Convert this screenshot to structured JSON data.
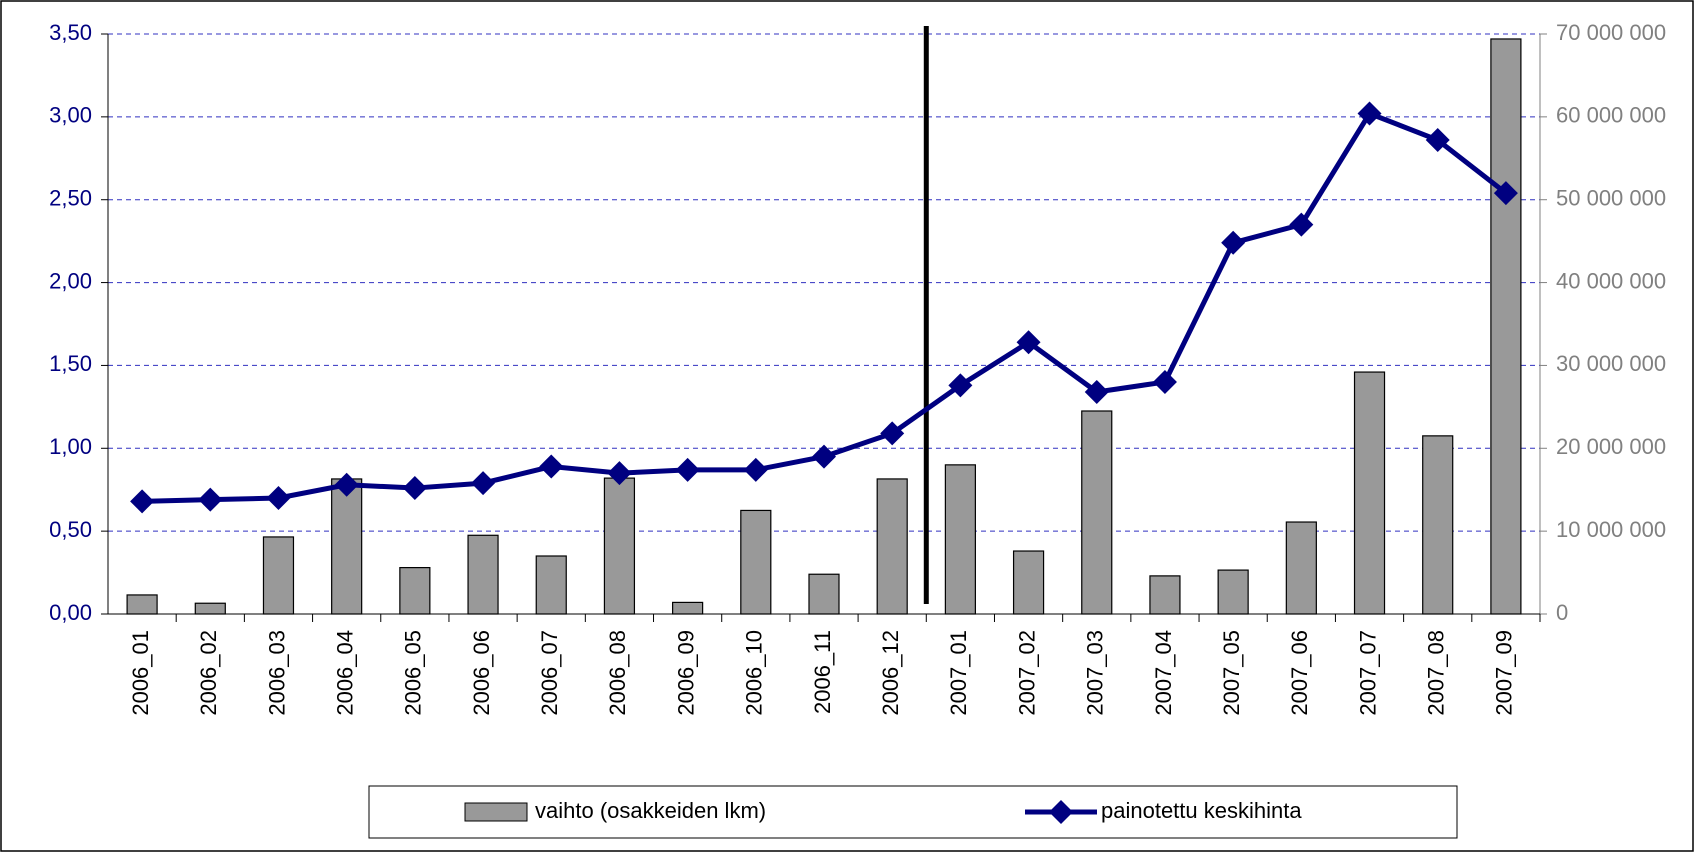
{
  "chart_data": {
    "type": "bar_line",
    "categories": [
      "2006_01",
      "2006_02",
      "2006_03",
      "2006_04",
      "2006_05",
      "2006_06",
      "2006_07",
      "2006_08",
      "2006_09",
      "2006_10",
      "2006_11",
      "2006_12",
      "2007_01",
      "2007_02",
      "2007_03",
      "2007_04",
      "2007_05",
      "2007_06",
      "2007_07",
      "2007_08",
      "2007_09"
    ],
    "series": [
      {
        "name": "vaihto (osakkeiden lkm)",
        "type": "bar",
        "axis": "y2",
        "color": "#999999",
        "values": [
          2300000,
          1300000,
          9300000,
          16300000,
          5600000,
          9500000,
          7000000,
          16400000,
          1400000,
          12500000,
          4800000,
          16300000,
          18000000,
          7600000,
          24500000,
          4600000,
          5300000,
          11100000,
          29200000,
          21500000,
          69400000
        ]
      },
      {
        "name": "painotettu keskihinta",
        "type": "line",
        "axis": "y",
        "color": "#000080",
        "values": [
          0.68,
          0.69,
          0.7,
          0.78,
          0.76,
          0.79,
          0.89,
          0.85,
          0.87,
          0.87,
          0.95,
          1.09,
          1.38,
          1.64,
          1.34,
          1.4,
          2.24,
          2.35,
          3.02,
          2.86,
          2.54
        ]
      }
    ],
    "ylim": [
      0,
      3.5
    ],
    "yticks": [
      {
        "value": 0,
        "label": "0,00"
      },
      {
        "value": 0.5,
        "label": "0,50"
      },
      {
        "value": 1,
        "label": "1,00"
      },
      {
        "value": 1.5,
        "label": "1,50"
      },
      {
        "value": 2,
        "label": "2,00"
      },
      {
        "value": 2.5,
        "label": "2,50"
      },
      {
        "value": 3,
        "label": "3,00"
      },
      {
        "value": 3.5,
        "label": "3,50"
      }
    ],
    "y2lim": [
      0,
      70000000
    ],
    "y2ticks": [
      0,
      {
        "value": 10000000,
        "label": "10 000 000"
      },
      {
        "value": 20000000,
        "label": "20 000 000"
      },
      {
        "value": 30000000,
        "label": "30 000 000"
      },
      {
        "value": 40000000,
        "label": "40 000 000"
      },
      {
        "value": 50000000,
        "label": "50 000 000"
      },
      {
        "value": 60000000,
        "label": "60 000 000"
      },
      {
        "value": 70000000,
        "label": "70 000 000"
      }
    ],
    "grid": true,
    "legend": "bottom"
  }
}
